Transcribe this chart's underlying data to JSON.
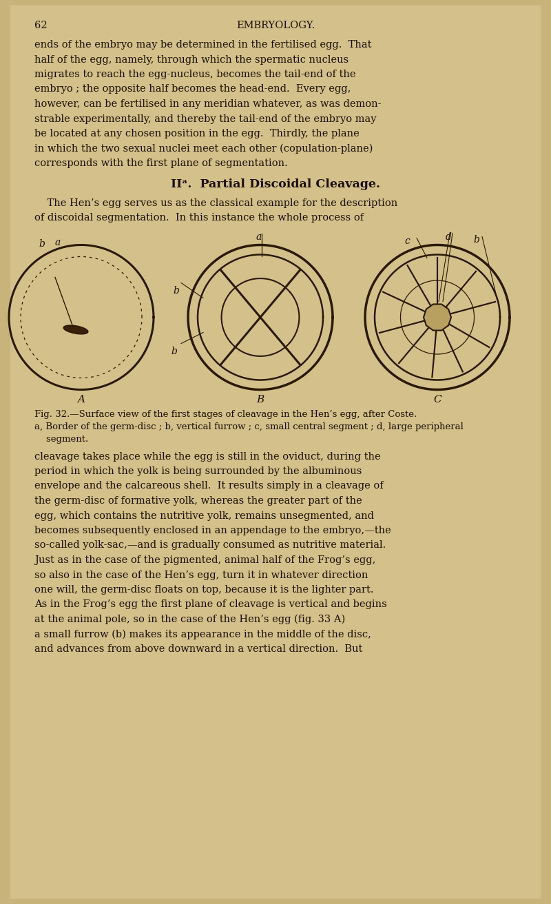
{
  "bg_color": "#c8b47a",
  "page_color": "#d4c08a",
  "text_color": "#1a1008",
  "page_number": "62",
  "header": "EMBRYOLOGY.",
  "para1_lines": [
    "ends of the embryo may be determined in the fertilised egg.  That",
    "half of the egg, namely, through which the spermatic nucleus",
    "migrates to reach the egg-nucleus, becomes the tail-end of the",
    "embryo ; the opposite half becomes the head-end.  Every egg,",
    "however, can be fertilised in any meridian whatever, as was demon-",
    "strable experimentally, and thereby the tail-end of the embryo may",
    "be located at any chosen position in the egg.  Thirdly, the plane",
    "in which the two sexual nuclei meet each other (copulation-plane)",
    "corresponds with the first plane of segmentation."
  ],
  "section_heading": "IIᵃ.  Partial Discoidal Cleavage.",
  "para2_lines": [
    "    The Hen’s egg serves us as the classical example for the description",
    "of discoidal segmentation.  In this instance the whole process of"
  ],
  "label_A": "A",
  "label_B": "B",
  "label_C": "C",
  "fig_caption_lines": [
    "Fig. 32.—Surface view of the first stages of cleavage in the Hen’s egg, after Coste.",
    "a, Border of the germ-disc ; b, vertical furrow ; c, small central segment ; d, large peripheral",
    "    segment."
  ],
  "para3_lines": [
    "cleavage takes place while the egg is still in the oviduct, during the",
    "period in which the yolk is being surrounded by the albuminous",
    "envelope and the calcareous shell.  It results simply in a cleavage of",
    "the germ-disc of formative yolk, whereas the greater part of the",
    "egg, which contains the nutritive yolk, remains unsegmented, and",
    "becomes subsequently enclosed in an appendage to the embryo,—the",
    "so-called yolk-sac,—and is gradually consumed as nutritive material.",
    "Just as in the case of the pigmented, animal half of the Frog’s egg,",
    "so also in the case of the Hen’s egg, turn it in whatever direction",
    "one will, the germ-disc floats on top, because it is the lighter part.",
    "As in the Frog’s egg the first plane of cleavage is vertical and begins",
    "at the animal pole, so in the case of the Hen’s egg (fig. 33 A)",
    "a small furrow (b) makes its appearance in the middle of the disc,",
    "and advances from above downward in a vertical direction.  But"
  ]
}
